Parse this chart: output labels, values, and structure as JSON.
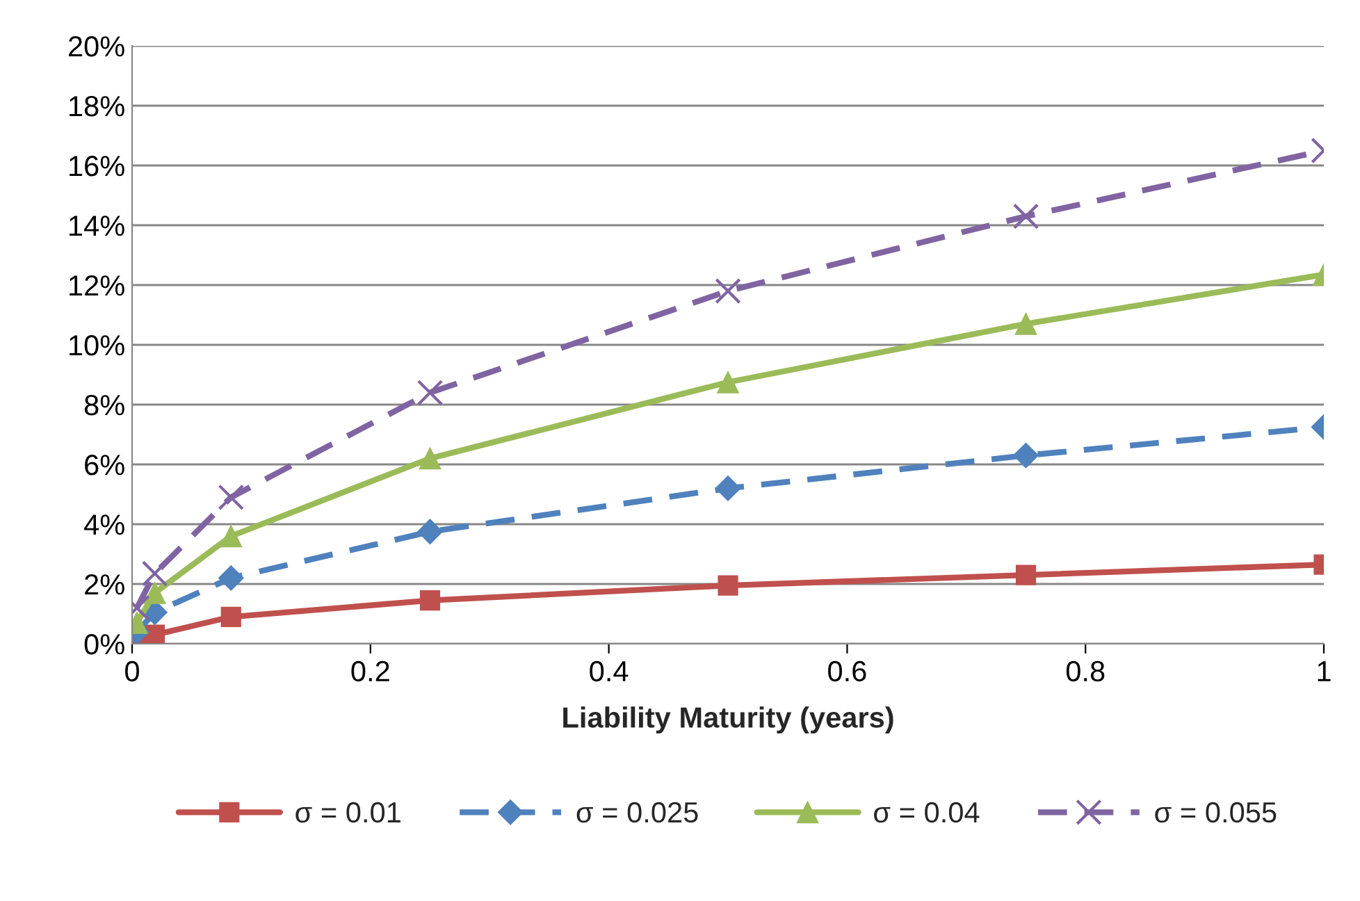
{
  "chart_data": {
    "type": "line",
    "xlabel": "Liability Maturity (years)",
    "x": [
      0.004,
      0.019,
      0.083,
      0.25,
      0.5,
      0.75,
      1
    ],
    "xlim": [
      0,
      1
    ],
    "xticks": [
      0,
      0.2,
      0.4,
      0.6,
      0.8,
      1
    ],
    "ylim": [
      0,
      20
    ],
    "yticks": [
      {
        "value": 0,
        "label": "0%"
      },
      {
        "value": 2,
        "label": "2%"
      },
      {
        "value": 4,
        "label": "4%"
      },
      {
        "value": 6,
        "label": "6%"
      },
      {
        "value": 8,
        "label": "8%"
      },
      {
        "value": 10,
        "label": "10%"
      },
      {
        "value": 12,
        "label": "12%"
      },
      {
        "value": 14,
        "label": "14%"
      },
      {
        "value": 16,
        "label": "16%"
      },
      {
        "value": 18,
        "label": "18%"
      },
      {
        "value": 20,
        "label": "20%"
      }
    ],
    "grid": "y",
    "legend": "bottom",
    "series": [
      {
        "name": "σ = 0.01",
        "color": "#c0504d",
        "marker": "square",
        "line_style": "solid",
        "values": [
          0.15,
          0.3,
          0.9,
          1.45,
          1.95,
          2.3,
          2.65
        ]
      },
      {
        "name": "σ = 0.025",
        "color": "#4f81bd",
        "marker": "diamond",
        "line_style": "dashed",
        "values": [
          0.4,
          1.05,
          2.2,
          3.75,
          5.2,
          6.3,
          7.25
        ]
      },
      {
        "name": "σ = 0.04",
        "color": "#9bbb59",
        "marker": "triangle",
        "line_style": "solid",
        "values": [
          0.7,
          1.7,
          3.6,
          6.2,
          8.75,
          10.7,
          12.35
        ]
      },
      {
        "name": "σ = 0.055",
        "color": "#8064a2",
        "marker": "cross",
        "line_style": "dashed",
        "values": [
          1.2,
          2.35,
          4.9,
          8.4,
          11.8,
          14.3,
          16.5
        ]
      }
    ]
  }
}
